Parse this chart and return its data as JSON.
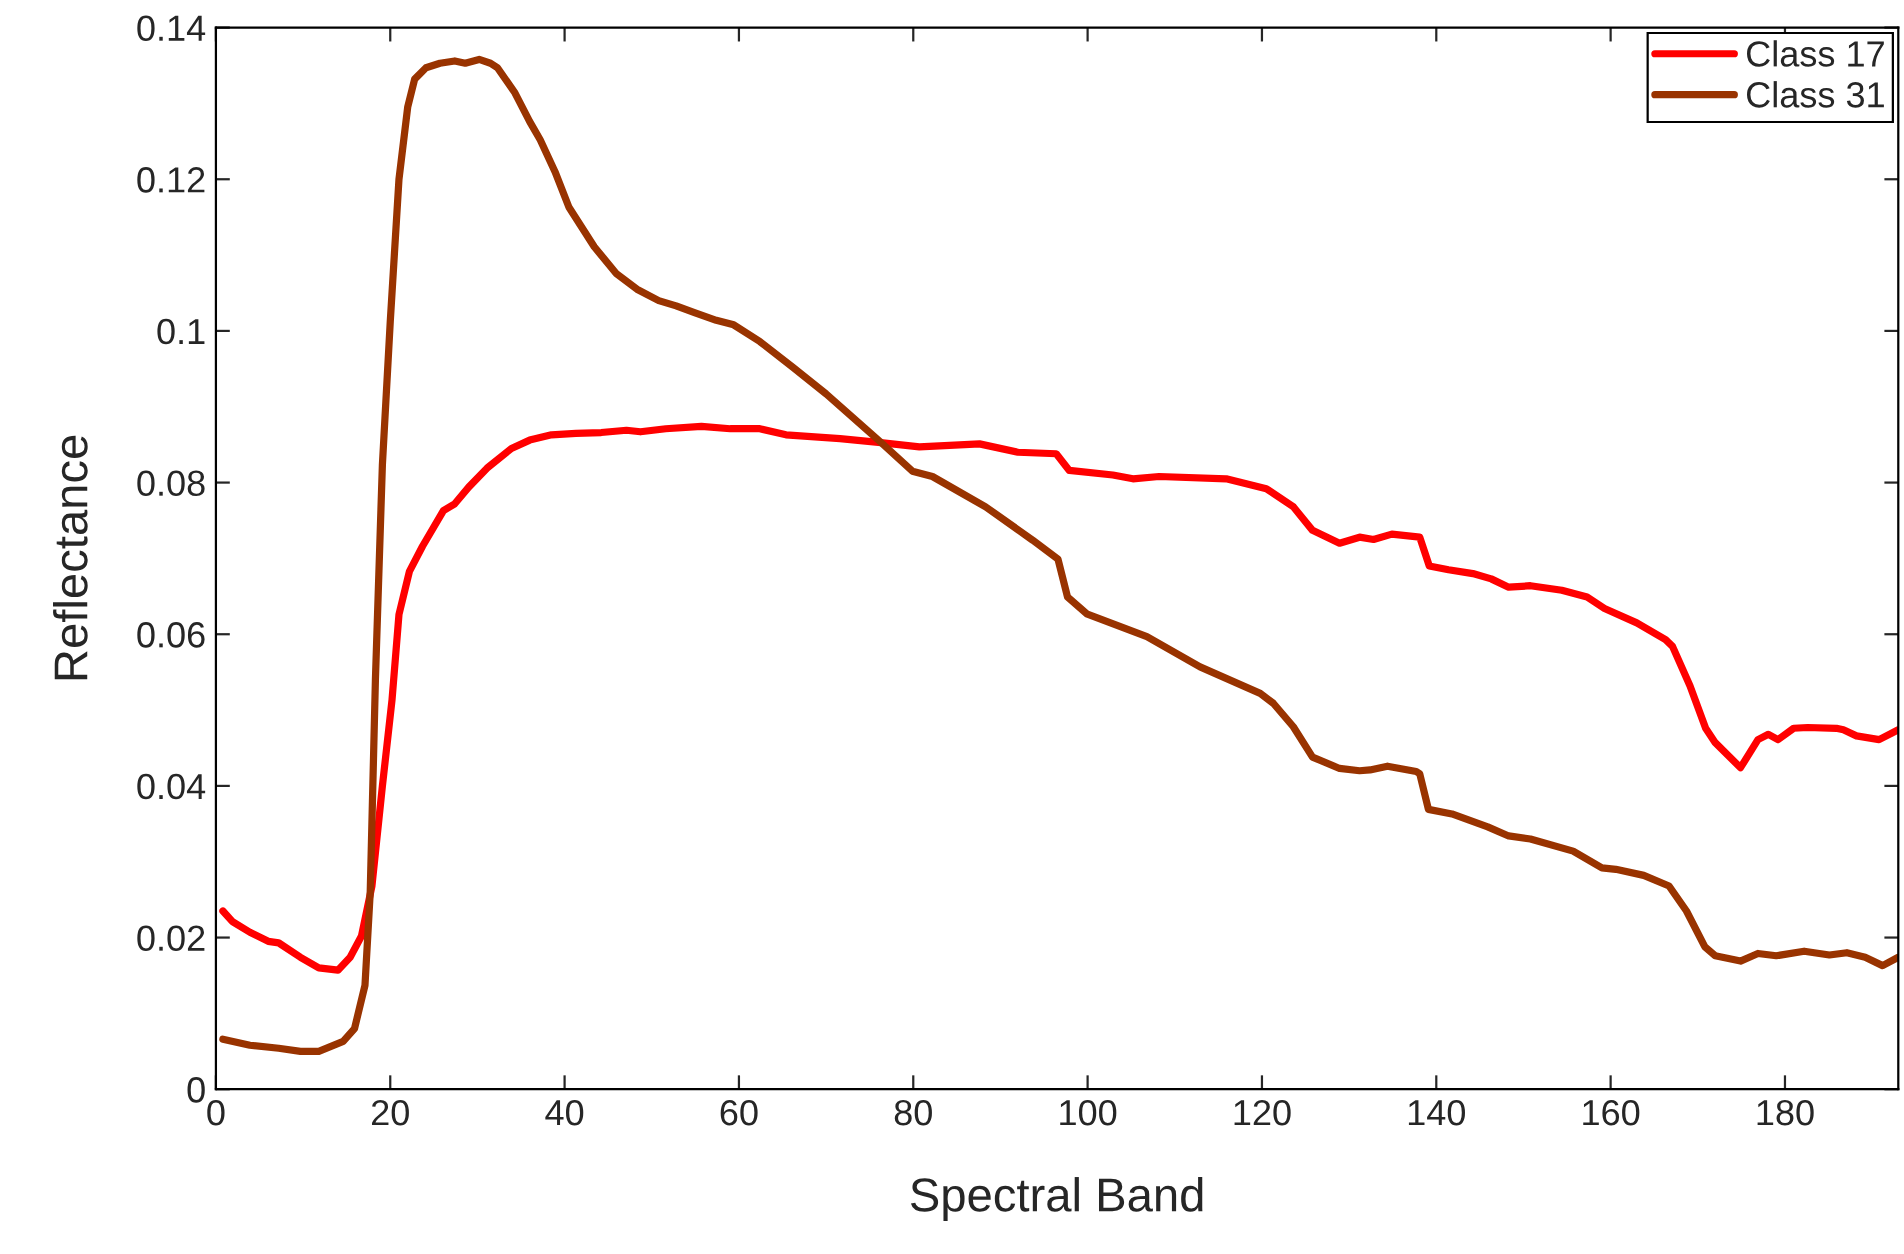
{
  "chart_data": {
    "type": "line",
    "xlabel": "Spectral Band",
    "ylabel": "Reflectance",
    "xlim": [
      0,
      193
    ],
    "xticks": [
      0,
      20,
      40,
      60,
      80,
      100,
      120,
      140,
      160,
      180
    ],
    "ylim": [
      0,
      0.14
    ],
    "yticks": [
      {
        "value": 0,
        "label": "0"
      },
      0.02,
      0.04,
      0.06,
      0.08,
      {
        "value": 0.1,
        "label": "0.1"
      },
      0.12,
      0.14
    ],
    "grid": false,
    "legend": "top right",
    "marker": "none",
    "line_style": "solid",
    "series": [
      {
        "name": "Class 17",
        "color": "#ff0000",
        "x": [
          0.8,
          1.9,
          3.9,
          6,
          7.2,
          9.7,
          11.8,
          14,
          15.4,
          16.7,
          17.9,
          19.1,
          20.2,
          21,
          22.2,
          23.7,
          26.1,
          27.4,
          29,
          31.1,
          33.9,
          36,
          38.5,
          41.3,
          44.2,
          47.1,
          48.7,
          51.6,
          55.7,
          59,
          62.4,
          65.4,
          71.6,
          76,
          80.7,
          87.6,
          92,
          96.4,
          97.9,
          102.9,
          105.2,
          108.2,
          115.9,
          120.5,
          123.6,
          125.8,
          128.9,
          131.2,
          132.8,
          134.9,
          138.1,
          139.2,
          141.4,
          144.2,
          146.3,
          148.3,
          150.8,
          154.4,
          157.3,
          159.3,
          163,
          166.3,
          167.1,
          169.1,
          170.9,
          172,
          174.9,
          176.9,
          178.1,
          179.2,
          181,
          182.6,
          185.9,
          186.7,
          188.2,
          190.8,
          193
        ],
        "values": [
          0.0235,
          0.0221,
          0.0207,
          0.0195,
          0.0193,
          0.0174,
          0.016,
          0.0157,
          0.0174,
          0.0202,
          0.0268,
          0.04,
          0.0513,
          0.0626,
          0.0683,
          0.0716,
          0.0763,
          0.0772,
          0.0794,
          0.0819,
          0.0845,
          0.0856,
          0.0863,
          0.0865,
          0.0866,
          0.0869,
          0.0867,
          0.0871,
          0.0874,
          0.0871,
          0.0871,
          0.0863,
          0.0858,
          0.0853,
          0.0847,
          0.0851,
          0.084,
          0.0838,
          0.0816,
          0.081,
          0.0805,
          0.0808,
          0.0805,
          0.0792,
          0.0768,
          0.0737,
          0.072,
          0.0728,
          0.0725,
          0.0732,
          0.0728,
          0.069,
          0.0685,
          0.068,
          0.0673,
          0.0662,
          0.0664,
          0.0658,
          0.0649,
          0.0634,
          0.0615,
          0.0593,
          0.0584,
          0.0532,
          0.0476,
          0.0457,
          0.0424,
          0.0461,
          0.0468,
          0.0461,
          0.0476,
          0.0477,
          0.0476,
          0.0474,
          0.0466,
          0.0461,
          0.0474
        ]
      },
      {
        "name": "Class 31",
        "color": "#993300",
        "x": [
          0.8,
          3.9,
          7.2,
          9.7,
          11.8,
          14.6,
          15.9,
          17.1,
          17.7,
          18.3,
          19.1,
          20,
          21,
          22,
          22.8,
          24.1,
          25.7,
          27.4,
          28.6,
          30.2,
          31.5,
          32.3,
          34.3,
          36,
          37.2,
          38.9,
          40.5,
          43.4,
          45.9,
          48.3,
          50.8,
          52.8,
          54.9,
          57.4,
          59.4,
          62.4,
          66.2,
          70,
          76,
          79.9,
          82.2,
          88.3,
          93.7,
          96.6,
          97.7,
          99.9,
          106.8,
          112.9,
          119.8,
          121.3,
          123.6,
          125.8,
          128.9,
          131.2,
          132.4,
          134.4,
          137.7,
          138.1,
          139.1,
          141.8,
          145.9,
          148.3,
          150.8,
          155.7,
          159,
          160.6,
          163.8,
          166.7,
          168.7,
          170.8,
          172,
          174.9,
          176.9,
          179,
          182.2,
          185.1,
          187.1,
          189.2,
          191.2,
          193
        ],
        "values": [
          0.0066,
          0.0058,
          0.0054,
          0.005,
          0.005,
          0.0063,
          0.008,
          0.0137,
          0.0259,
          0.0541,
          0.0824,
          0.1012,
          0.12,
          0.1295,
          0.1332,
          0.1347,
          0.1353,
          0.1356,
          0.1353,
          0.1358,
          0.1353,
          0.1347,
          0.1314,
          0.1276,
          0.1252,
          0.121,
          0.1163,
          0.1111,
          0.1076,
          0.1055,
          0.104,
          0.1033,
          0.1024,
          0.1014,
          0.1008,
          0.0986,
          0.0952,
          0.0917,
          0.0856,
          0.0815,
          0.0808,
          0.0768,
          0.0724,
          0.0699,
          0.0649,
          0.0627,
          0.0597,
          0.0557,
          0.0522,
          0.0509,
          0.0478,
          0.0438,
          0.0423,
          0.042,
          0.0421,
          0.0426,
          0.0419,
          0.0416,
          0.0369,
          0.0363,
          0.0346,
          0.0334,
          0.033,
          0.0314,
          0.0292,
          0.029,
          0.0282,
          0.0268,
          0.0235,
          0.0188,
          0.0176,
          0.0169,
          0.0179,
          0.0176,
          0.0182,
          0.0177,
          0.018,
          0.0174,
          0.0163,
          0.0174
        ]
      }
    ]
  }
}
